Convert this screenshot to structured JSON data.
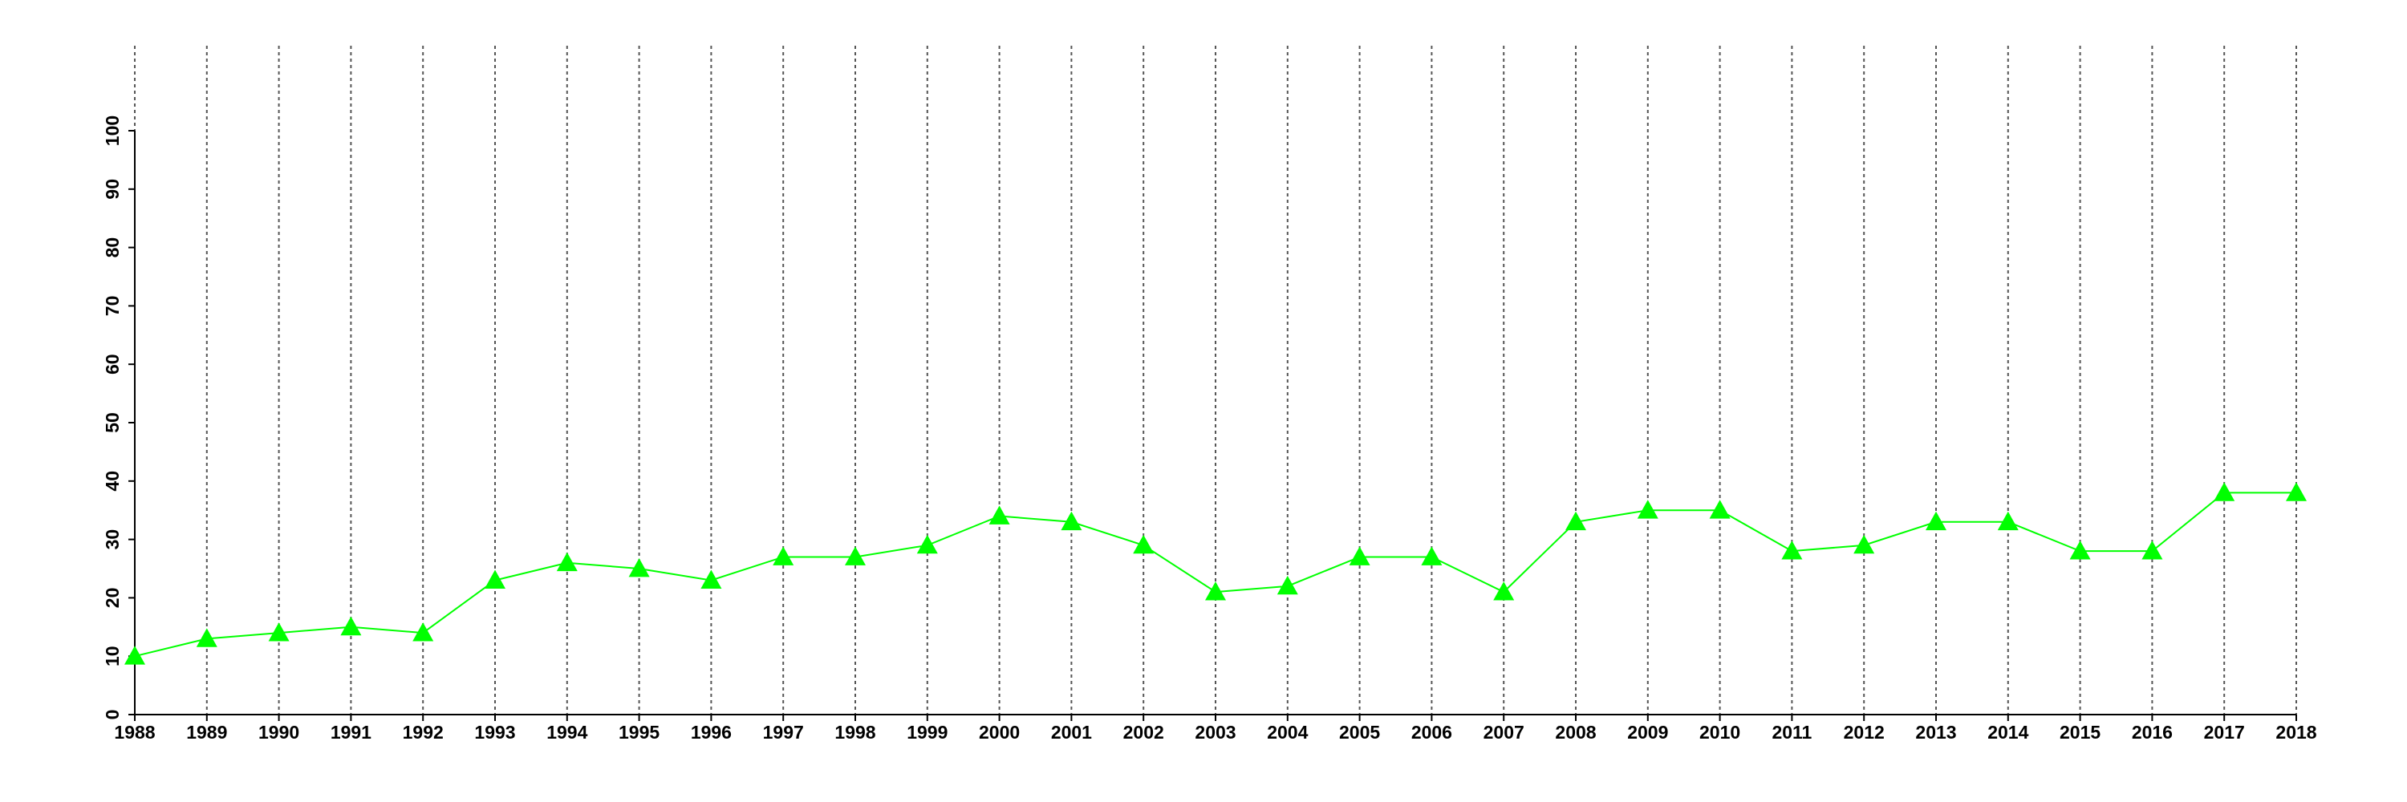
{
  "chart_data": {
    "type": "line",
    "x": [
      1988,
      1989,
      1990,
      1991,
      1992,
      1993,
      1994,
      1995,
      1996,
      1997,
      1998,
      1999,
      2000,
      2001,
      2002,
      2003,
      2004,
      2005,
      2006,
      2007,
      2008,
      2009,
      2010,
      2011,
      2012,
      2013,
      2014,
      2015,
      2016,
      2017,
      2018
    ],
    "series": [
      {
        "color": "#00ff00",
        "values": [
          10,
          13,
          14,
          15,
          14,
          23,
          26,
          25,
          23,
          27,
          27,
          29,
          34,
          33,
          29,
          21,
          22,
          27,
          27,
          21,
          33,
          35,
          35,
          28,
          29,
          33,
          33,
          28,
          28,
          38,
          38
        ]
      }
    ],
    "xlim": [
      1988,
      2018
    ],
    "xticks": [
      1988,
      1989,
      1990,
      1991,
      1992,
      1993,
      1994,
      1995,
      1996,
      1997,
      1998,
      1999,
      2000,
      2001,
      2002,
      2003,
      2004,
      2005,
      2006,
      2007,
      2008,
      2009,
      2010,
      2011,
      2012,
      2013,
      2014,
      2015,
      2016,
      2017,
      2018
    ],
    "ylim": [
      0,
      100
    ],
    "yticks": [
      0,
      10,
      20,
      30,
      40,
      50,
      60,
      70,
      80,
      90,
      100
    ],
    "grid": true
  }
}
